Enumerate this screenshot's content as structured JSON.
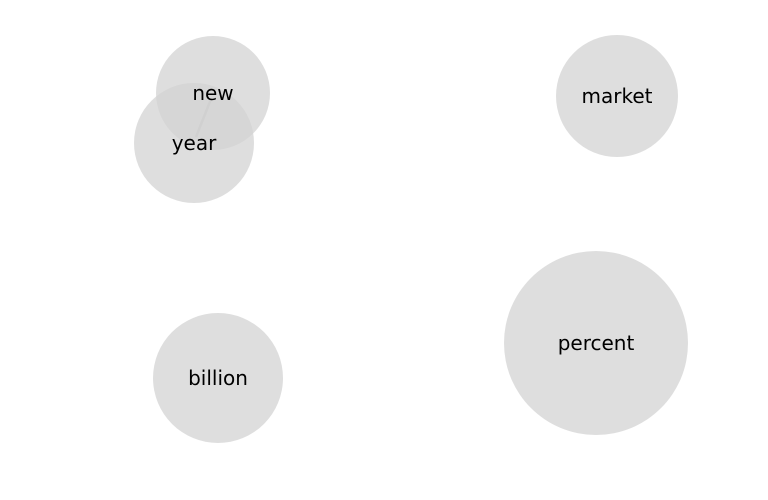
{
  "graph": {
    "nodes": [
      {
        "id": "new",
        "label": "new"
      },
      {
        "id": "year",
        "label": "year"
      },
      {
        "id": "market",
        "label": "market"
      },
      {
        "id": "percent",
        "label": "percent"
      },
      {
        "id": "billion",
        "label": "billion"
      }
    ],
    "edges": [
      {
        "source": "new",
        "target": "year"
      }
    ],
    "colors": {
      "node_fill": "#d3d3d3",
      "edge": "#8c8c8c",
      "label": "#000000"
    }
  }
}
